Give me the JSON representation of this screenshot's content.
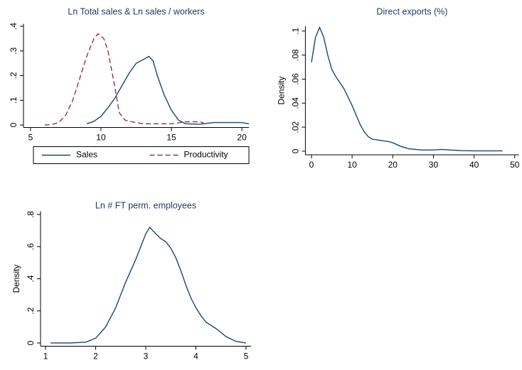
{
  "chart_data": [
    {
      "type": "line",
      "title": "Ln Total sales & Ln sales / workers",
      "xlim": [
        4.5,
        20.5
      ],
      "xticks": [
        5,
        10,
        15,
        20
      ],
      "ylim": [
        -0.01,
        0.41
      ],
      "yticks": [
        0,
        {
          "value": 0.1,
          "label": ".1"
        },
        {
          "value": 0.2,
          "label": ".2"
        },
        {
          "value": 0.3,
          "label": ".3"
        },
        {
          "value": 0.4,
          "label": ".4"
        }
      ],
      "legend": "bottom",
      "series": [
        {
          "name": "Sales",
          "color": "#1a476f",
          "dash": false,
          "x": [
            9,
            9.5,
            10,
            10.5,
            11,
            11.5,
            12,
            12.5,
            13,
            13.4,
            13.7,
            14,
            14.5,
            15,
            15.5,
            16,
            17,
            18,
            19,
            20,
            20.5
          ],
          "values": [
            0.005,
            0.015,
            0.035,
            0.07,
            0.11,
            0.16,
            0.21,
            0.25,
            0.265,
            0.278,
            0.26,
            0.2,
            0.12,
            0.06,
            0.02,
            0.005,
            0.003,
            0.01,
            0.01,
            0.01,
            0.005
          ]
        },
        {
          "name": "Productivity",
          "color": "#90353b",
          "dash": true,
          "x": [
            6,
            6.5,
            7,
            7.5,
            8,
            8.5,
            9,
            9.5,
            9.8,
            10.2,
            10.5,
            11,
            11.3,
            11.7,
            12,
            13,
            14,
            15,
            16,
            17,
            17.3
          ],
          "values": [
            0,
            0.002,
            0.01,
            0.04,
            0.1,
            0.19,
            0.28,
            0.35,
            0.37,
            0.35,
            0.3,
            0.15,
            0.05,
            0.02,
            0.015,
            0.005,
            0.005,
            0.005,
            0.013,
            0.013,
            0.008
          ]
        }
      ]
    },
    {
      "type": "line",
      "title": "Direct exports (%)",
      "ylabel": "Density",
      "xlim": [
        -1.5,
        51
      ],
      "xticks": [
        0,
        10,
        20,
        30,
        40,
        50
      ],
      "ylim": [
        -0.003,
        0.104
      ],
      "yticks": [
        0,
        {
          "value": 0.02,
          "label": ".02"
        },
        {
          "value": 0.04,
          "label": ".04"
        },
        {
          "value": 0.06,
          "label": ".06"
        },
        {
          "value": 0.08,
          "label": ".08"
        },
        {
          "value": 0.1,
          "label": ".1"
        }
      ],
      "series": [
        {
          "color": "#1a476f",
          "dash": false,
          "x": [
            0,
            1,
            2,
            3,
            4,
            5,
            6,
            7,
            8,
            9,
            10,
            11,
            12,
            13,
            14,
            15,
            17,
            19,
            20,
            22,
            24,
            27,
            30,
            32,
            34,
            37,
            40,
            45,
            47
          ],
          "values": [
            0.074,
            0.095,
            0.103,
            0.095,
            0.08,
            0.068,
            0.062,
            0.057,
            0.052,
            0.045,
            0.038,
            0.03,
            0.022,
            0.016,
            0.012,
            0.01,
            0.009,
            0.008,
            0.007,
            0.004,
            0.002,
            0.001,
            0.001,
            0.0015,
            0.001,
            0.0005,
            0.0003,
            0.0003,
            0.0003
          ]
        }
      ]
    },
    {
      "type": "line",
      "title": "Ln # FT perm. employees",
      "ylabel": "Density",
      "xlim": [
        0.9,
        5.1
      ],
      "xticks": [
        1,
        2,
        3,
        4,
        5
      ],
      "ylim": [
        -0.02,
        0.82
      ],
      "yticks": [
        0,
        {
          "value": 0.2,
          "label": ".2"
        },
        {
          "value": 0.4,
          "label": ".4"
        },
        {
          "value": 0.6,
          "label": ".6"
        },
        {
          "value": 0.8,
          "label": ".8"
        }
      ],
      "series": [
        {
          "color": "#1a476f",
          "dash": false,
          "x": [
            1.1,
            1.5,
            1.8,
            2,
            2.2,
            2.4,
            2.6,
            2.8,
            2.9,
            3,
            3.08,
            3.2,
            3.3,
            3.4,
            3.5,
            3.6,
            3.7,
            3.8,
            3.9,
            4,
            4.1,
            4.2,
            4.4,
            4.6,
            4.8,
            5
          ],
          "values": [
            0,
            0,
            0.005,
            0.03,
            0.1,
            0.22,
            0.38,
            0.52,
            0.6,
            0.68,
            0.72,
            0.68,
            0.65,
            0.63,
            0.59,
            0.53,
            0.45,
            0.36,
            0.28,
            0.22,
            0.17,
            0.13,
            0.09,
            0.04,
            0.01,
            0
          ]
        }
      ]
    }
  ]
}
